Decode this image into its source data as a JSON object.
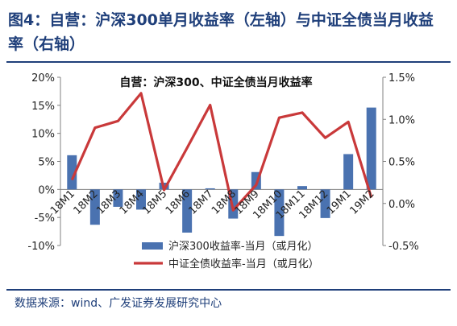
{
  "figure": {
    "title": "图4：自营：沪深300单月收益率（左轴）与中证全债当月收益率（右轴）",
    "source": "数据来源：wind、广发证券发展研究中心"
  },
  "colors": {
    "bar": "#4a72b0",
    "line": "#c9393a",
    "title": "#1f3f7a"
  },
  "chart_data": {
    "type": "bar",
    "title": "自营：沪深300、中证全债当月收益率",
    "categories": [
      "18M1",
      "18M2",
      "18M3",
      "18M4",
      "18M5",
      "18M6",
      "18M7",
      "18M8",
      "18M9",
      "18M10",
      "18M11",
      "18M12",
      "19M1",
      "19M2"
    ],
    "series": [
      {
        "name": "沪深300收益率-当月（或月化）",
        "type": "bar",
        "axis": "left",
        "values": [
          6.1,
          -6.3,
          -3.1,
          -3.6,
          1.2,
          -7.7,
          0.2,
          -5.2,
          3.1,
          -8.3,
          0.6,
          -5.1,
          6.3,
          14.6
        ]
      },
      {
        "name": "中证全债收益率-当月（或月化）",
        "type": "line",
        "axis": "right",
        "values": [
          0.28,
          0.9,
          0.98,
          1.31,
          0.16,
          0.66,
          1.17,
          -0.08,
          0.22,
          1.02,
          1.08,
          0.78,
          0.97,
          0.07
        ]
      }
    ],
    "yleft": {
      "ylim": [
        -10,
        20
      ],
      "ticks": [
        "-10%",
        "-5%",
        "0%",
        "5%",
        "10%",
        "15%",
        "20%"
      ]
    },
    "yright": {
      "ylim": [
        -0.5,
        1.5
      ],
      "ticks": [
        "-0.5%",
        "0.0%",
        "0.5%",
        "1.0%",
        "1.5%"
      ]
    },
    "legend_position": "bottom-center",
    "grid": false
  }
}
